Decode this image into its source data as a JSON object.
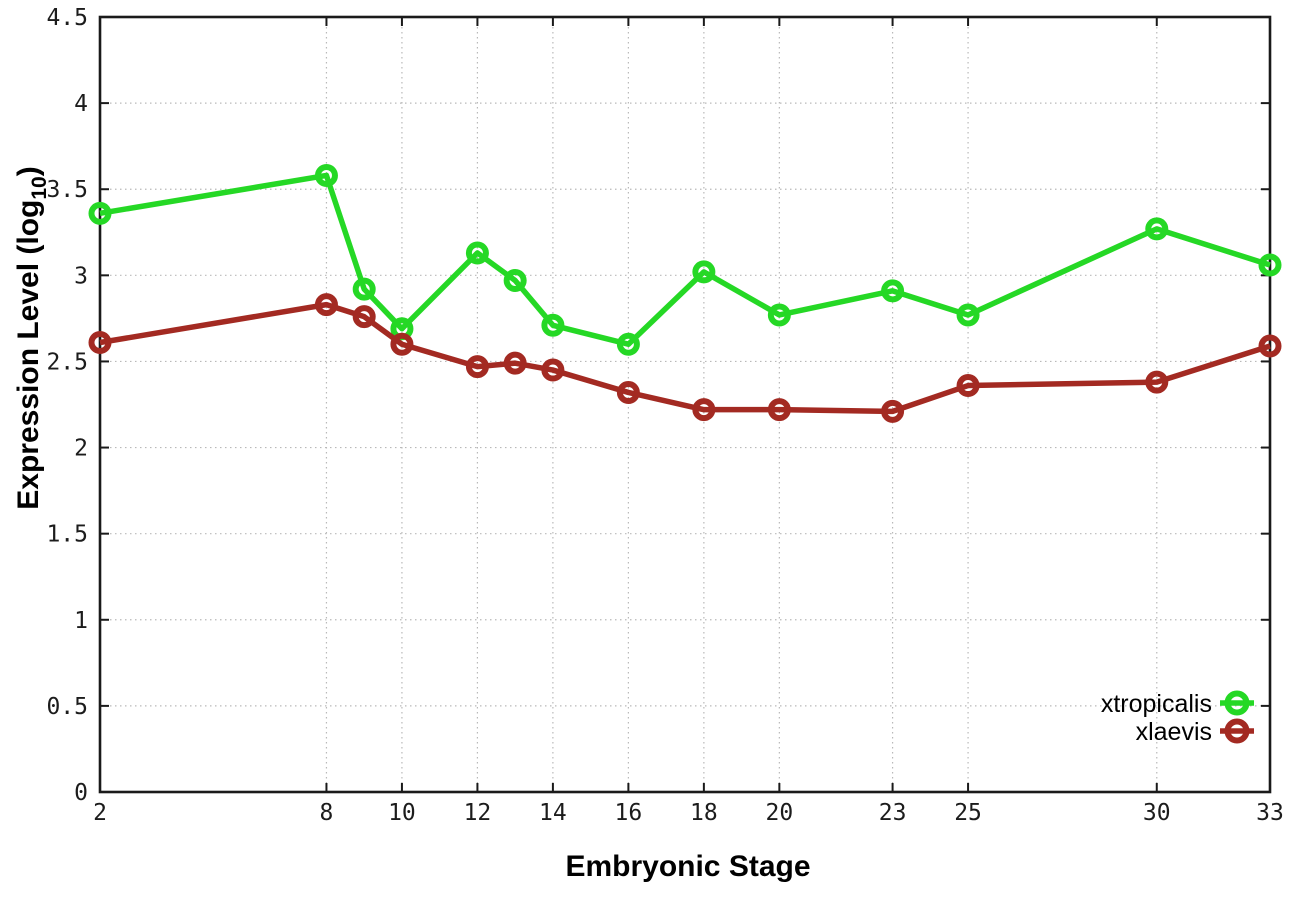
{
  "chart_data": {
    "type": "line",
    "title": "",
    "xlabel": "Embryonic Stage",
    "ylabel": "Expression Level (log10)",
    "ylabel_parts": {
      "prefix": "Expression Level (log",
      "sub": "10",
      "suffix": ")"
    },
    "xlim": [
      2,
      33
    ],
    "ylim": [
      0,
      4.5
    ],
    "grid": true,
    "legend_position": "bottom-right",
    "x_ticks": [
      2,
      8,
      10,
      12,
      14,
      16,
      18,
      20,
      23,
      25,
      30,
      33
    ],
    "x_tick_labels": [
      "2",
      "8",
      "10",
      "12",
      "14",
      "16",
      "18",
      "20",
      "23",
      "25",
      "30",
      "33"
    ],
    "y_ticks": [
      0,
      0.5,
      1,
      1.5,
      2,
      2.5,
      3,
      3.5,
      4,
      4.5
    ],
    "y_tick_labels": [
      "0",
      "0.5",
      "1",
      "1.5",
      "2",
      "2.5",
      "3",
      "3.5",
      "4",
      "4.5"
    ],
    "x": [
      2,
      8,
      9,
      10,
      12,
      13,
      14,
      16,
      18,
      20,
      23,
      25,
      30,
      33
    ],
    "series": [
      {
        "name": "xtropicalis",
        "color": "#25d825",
        "values": [
          3.36,
          3.58,
          2.92,
          2.69,
          3.13,
          2.97,
          2.71,
          2.6,
          3.02,
          2.77,
          2.91,
          2.77,
          3.27,
          3.06
        ]
      },
      {
        "name": "xlaevis",
        "color": "#a32a22",
        "values": [
          2.61,
          2.83,
          2.76,
          2.6,
          2.47,
          2.49,
          2.45,
          2.32,
          2.22,
          2.22,
          2.21,
          2.36,
          2.38,
          2.59
        ]
      }
    ]
  }
}
